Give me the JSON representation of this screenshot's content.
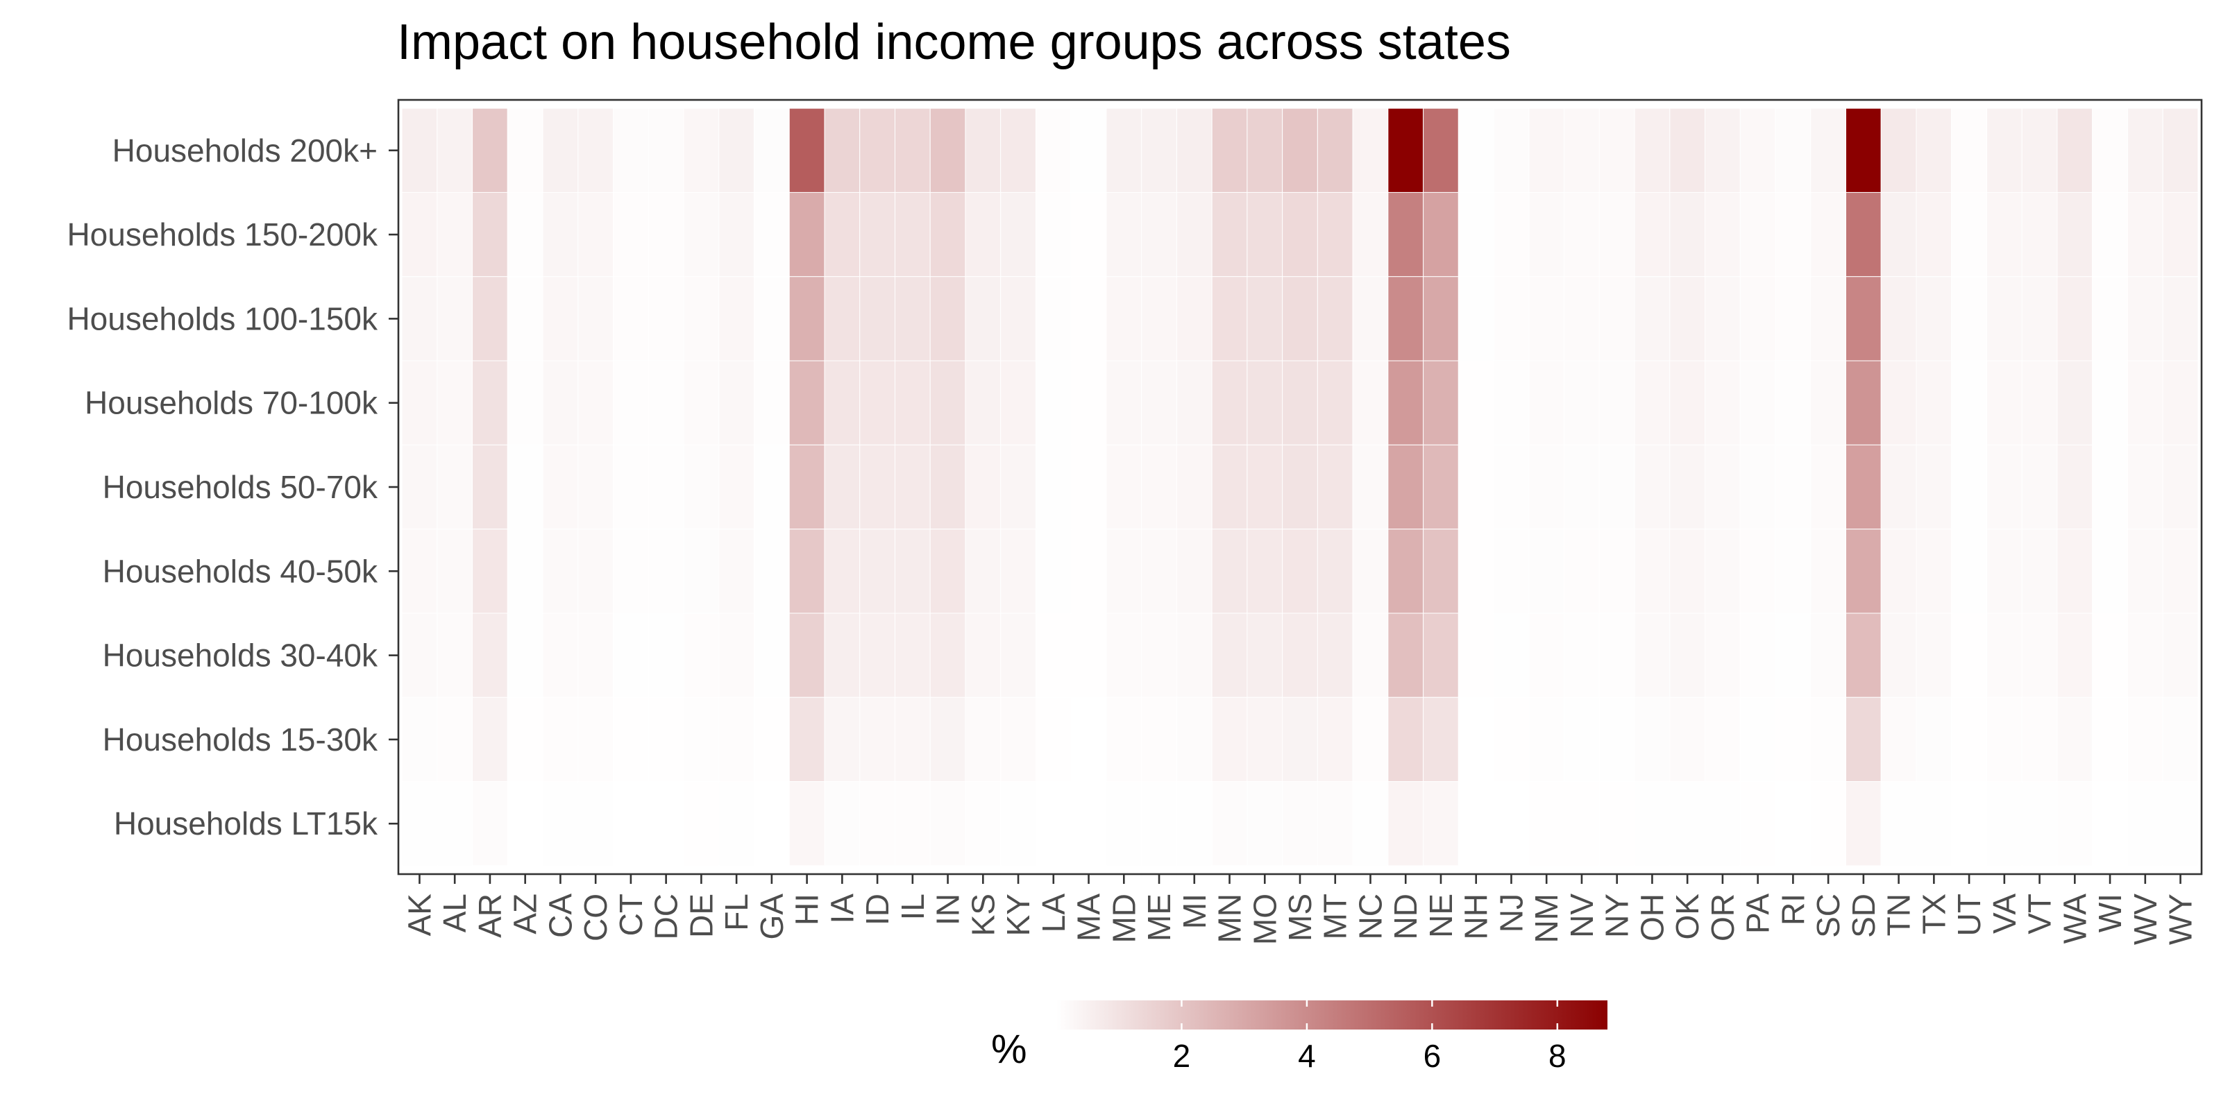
{
  "chart_data": {
    "type": "heatmap",
    "title": "Impact on household income groups across states",
    "xlabel": "",
    "ylabel": "",
    "x_categories": [
      "AK",
      "AL",
      "AR",
      "AZ",
      "CA",
      "CO",
      "CT",
      "DC",
      "DE",
      "FL",
      "GA",
      "HI",
      "IA",
      "ID",
      "IL",
      "IN",
      "KS",
      "KY",
      "LA",
      "MA",
      "MD",
      "ME",
      "MI",
      "MN",
      "MO",
      "MS",
      "MT",
      "NC",
      "ND",
      "NE",
      "NH",
      "NJ",
      "NM",
      "NV",
      "NY",
      "OH",
      "OK",
      "OR",
      "PA",
      "RI",
      "SC",
      "SD",
      "TN",
      "TX",
      "UT",
      "VA",
      "VT",
      "WA",
      "WI",
      "WV",
      "WY"
    ],
    "y_categories": [
      "Households 200k+",
      "Households 150-200k",
      "Households 100-150k",
      "Households 70-100k",
      "Households 50-70k",
      "Households 40-50k",
      "Households 30-40k",
      "Households 15-30k",
      "Households LT15k"
    ],
    "values": [
      [
        0.6,
        0.45,
        1.9,
        0.1,
        0.5,
        0.45,
        0.15,
        0.15,
        0.3,
        0.5,
        0.12,
        5.6,
        1.5,
        1.4,
        1.4,
        2.0,
        0.8,
        0.75,
        0.1,
        0.05,
        0.5,
        0.5,
        0.6,
        1.7,
        1.6,
        2.0,
        1.8,
        0.4,
        8.8,
        5.0,
        0.05,
        0.15,
        0.3,
        0.25,
        0.25,
        0.55,
        0.75,
        0.45,
        0.25,
        0.15,
        0.35,
        8.8,
        0.75,
        0.55,
        0.1,
        0.45,
        0.45,
        0.9,
        0.1,
        0.45,
        0.6
      ],
      [
        0.4,
        0.3,
        1.35,
        0.08,
        0.35,
        0.3,
        0.1,
        0.1,
        0.2,
        0.35,
        0.08,
        2.9,
        1.1,
        1.0,
        1.0,
        1.3,
        0.55,
        0.5,
        0.07,
        0.03,
        0.35,
        0.35,
        0.45,
        1.2,
        1.15,
        1.3,
        1.25,
        0.3,
        4.4,
        3.2,
        0.04,
        0.1,
        0.2,
        0.18,
        0.18,
        0.4,
        0.5,
        0.3,
        0.18,
        0.1,
        0.25,
        4.8,
        0.5,
        0.4,
        0.07,
        0.3,
        0.3,
        0.6,
        0.07,
        0.3,
        0.4
      ],
      [
        0.35,
        0.28,
        1.2,
        0.07,
        0.3,
        0.28,
        0.09,
        0.09,
        0.18,
        0.3,
        0.07,
        2.7,
        1.0,
        0.95,
        0.95,
        1.2,
        0.5,
        0.45,
        0.06,
        0.03,
        0.3,
        0.3,
        0.4,
        1.1,
        1.05,
        1.2,
        1.15,
        0.28,
        4.0,
        3.0,
        0.04,
        0.09,
        0.18,
        0.16,
        0.16,
        0.35,
        0.45,
        0.28,
        0.16,
        0.09,
        0.22,
        4.2,
        0.45,
        0.35,
        0.06,
        0.28,
        0.28,
        0.55,
        0.06,
        0.28,
        0.35
      ],
      [
        0.3,
        0.25,
        1.05,
        0.06,
        0.27,
        0.25,
        0.08,
        0.08,
        0.16,
        0.27,
        0.06,
        2.4,
        0.9,
        0.85,
        0.85,
        1.05,
        0.45,
        0.4,
        0.05,
        0.02,
        0.27,
        0.27,
        0.35,
        1.0,
        0.95,
        1.05,
        1.0,
        0.25,
        3.5,
        2.7,
        0.03,
        0.08,
        0.16,
        0.14,
        0.14,
        0.3,
        0.4,
        0.25,
        0.14,
        0.08,
        0.2,
        3.7,
        0.4,
        0.3,
        0.05,
        0.25,
        0.25,
        0.5,
        0.05,
        0.25,
        0.3
      ],
      [
        0.27,
        0.22,
        0.95,
        0.05,
        0.24,
        0.22,
        0.07,
        0.07,
        0.14,
        0.24,
        0.05,
        2.2,
        0.8,
        0.75,
        0.75,
        0.95,
        0.4,
        0.36,
        0.05,
        0.02,
        0.24,
        0.24,
        0.3,
        0.9,
        0.85,
        0.95,
        0.9,
        0.22,
        3.1,
        2.4,
        0.03,
        0.07,
        0.14,
        0.12,
        0.12,
        0.27,
        0.36,
        0.22,
        0.12,
        0.07,
        0.18,
        3.3,
        0.36,
        0.27,
        0.05,
        0.22,
        0.22,
        0.45,
        0.05,
        0.22,
        0.27
      ],
      [
        0.24,
        0.2,
        0.85,
        0.05,
        0.22,
        0.2,
        0.06,
        0.06,
        0.12,
        0.22,
        0.05,
        1.9,
        0.7,
        0.65,
        0.65,
        0.85,
        0.36,
        0.32,
        0.04,
        0.02,
        0.22,
        0.22,
        0.27,
        0.8,
        0.75,
        0.85,
        0.8,
        0.2,
        2.7,
        2.1,
        0.03,
        0.06,
        0.12,
        0.1,
        0.1,
        0.24,
        0.32,
        0.2,
        0.1,
        0.06,
        0.16,
        2.9,
        0.32,
        0.24,
        0.04,
        0.2,
        0.2,
        0.4,
        0.04,
        0.2,
        0.24
      ],
      [
        0.2,
        0.17,
        0.7,
        0.04,
        0.18,
        0.17,
        0.05,
        0.05,
        0.1,
        0.18,
        0.04,
        1.6,
        0.6,
        0.55,
        0.55,
        0.7,
        0.3,
        0.27,
        0.03,
        0.02,
        0.18,
        0.18,
        0.22,
        0.65,
        0.6,
        0.7,
        0.65,
        0.17,
        2.2,
        1.7,
        0.02,
        0.05,
        0.1,
        0.08,
        0.08,
        0.2,
        0.27,
        0.17,
        0.08,
        0.05,
        0.13,
        2.3,
        0.27,
        0.2,
        0.03,
        0.17,
        0.17,
        0.33,
        0.03,
        0.17,
        0.2
      ],
      [
        0.12,
        0.1,
        0.45,
        0.03,
        0.11,
        0.1,
        0.03,
        0.03,
        0.06,
        0.11,
        0.03,
        1.0,
        0.35,
        0.32,
        0.32,
        0.42,
        0.18,
        0.16,
        0.02,
        0.01,
        0.11,
        0.11,
        0.13,
        0.4,
        0.37,
        0.42,
        0.4,
        0.1,
        1.3,
        1.0,
        0.01,
        0.03,
        0.06,
        0.05,
        0.05,
        0.12,
        0.16,
        0.1,
        0.05,
        0.03,
        0.08,
        1.35,
        0.16,
        0.12,
        0.02,
        0.1,
        0.1,
        0.2,
        0.02,
        0.1,
        0.12
      ],
      [
        0.05,
        0.04,
        0.15,
        0.01,
        0.04,
        0.04,
        0.01,
        0.01,
        0.02,
        0.04,
        0.01,
        0.3,
        0.12,
        0.11,
        0.11,
        0.14,
        0.06,
        0.05,
        0.01,
        0.01,
        0.04,
        0.04,
        0.05,
        0.13,
        0.12,
        0.14,
        0.13,
        0.04,
        0.4,
        0.3,
        0.01,
        0.01,
        0.02,
        0.02,
        0.02,
        0.04,
        0.05,
        0.04,
        0.02,
        0.01,
        0.03,
        0.4,
        0.05,
        0.04,
        0.01,
        0.04,
        0.04,
        0.07,
        0.01,
        0.04,
        0.05
      ]
    ],
    "color_scale": {
      "low": "#ffffff",
      "high": "#8b0000",
      "min": 0,
      "max": 8.8
    },
    "legend": {
      "title": "%",
      "ticks": [
        2,
        4,
        6,
        8
      ],
      "position": "bottom"
    },
    "grid": false
  }
}
